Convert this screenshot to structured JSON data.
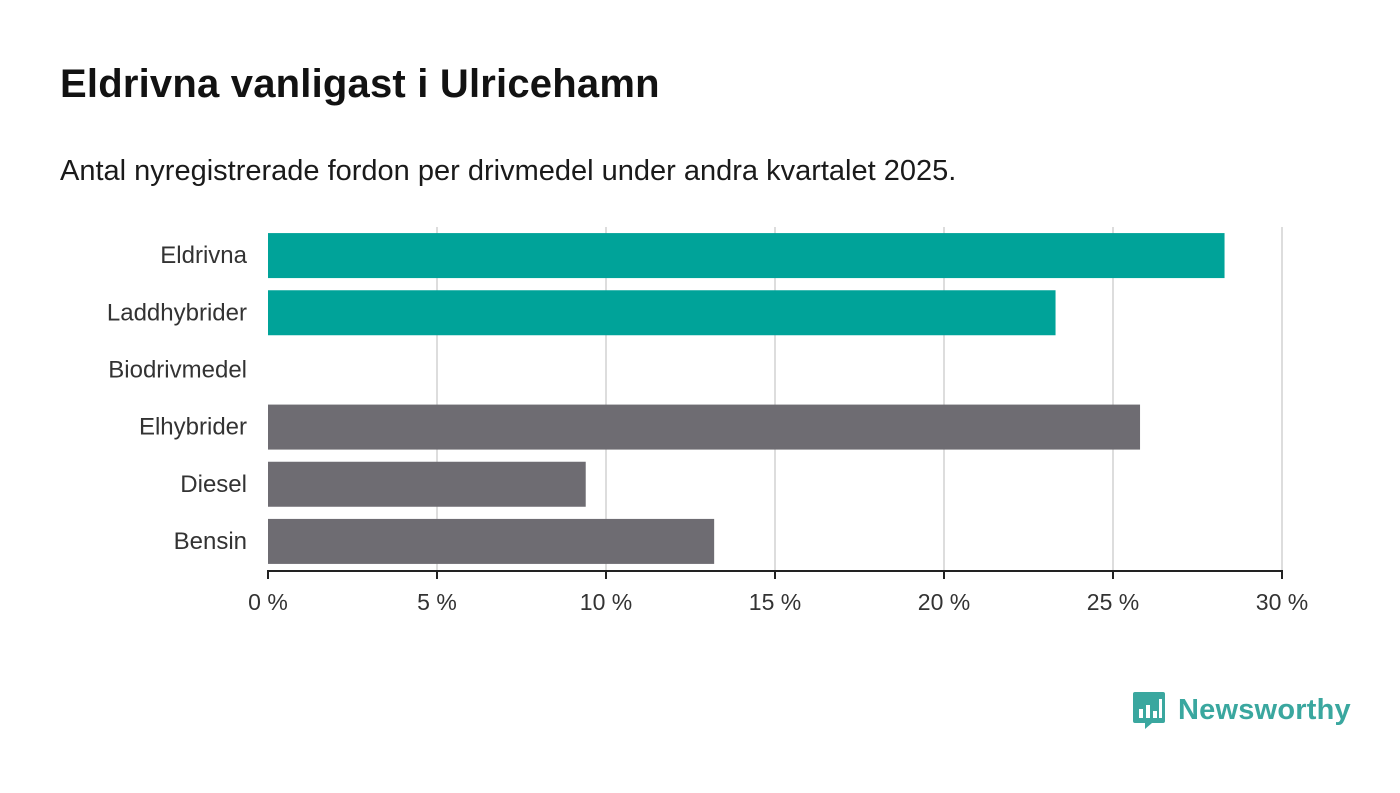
{
  "header": {
    "title": "Eldrivna vanligast i Ulricehamn",
    "subtitle": "Antal nyregistrerade fordon per drivmedel under andra kvartalet 2025."
  },
  "chart_data": {
    "type": "bar",
    "orientation": "horizontal",
    "categories": [
      "Eldrivna",
      "Laddhybrider",
      "Biodrivmedel",
      "Elhybrider",
      "Diesel",
      "Bensin"
    ],
    "values": [
      28.3,
      23.3,
      0,
      25.8,
      9.4,
      13.2
    ],
    "colors": [
      "#00a399",
      "#00a399",
      "#00a399",
      "#6e6c72",
      "#6e6c72",
      "#6e6c72"
    ],
    "xlim": [
      0,
      30
    ],
    "xticks": [
      0,
      5,
      10,
      15,
      20,
      25,
      30
    ],
    "xtick_labels": [
      "0 %",
      "5 %",
      "10 %",
      "15 %",
      "20 %",
      "25 %",
      "30 %"
    ],
    "grid": true
  },
  "logo": {
    "text": "Newsworthy",
    "color": "#3aa79f",
    "icon": "bar-chart-speech-bubble-icon"
  }
}
